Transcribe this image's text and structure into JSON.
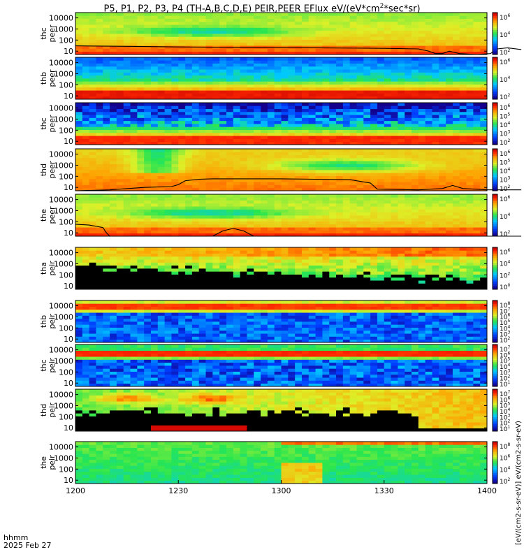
{
  "title": {
    "text": "P5, P1, P2, P3, P4 (TH-A,B,C,D,E) PEIR,PEER EFlux eV/(eV*cm",
    "sup": "2",
    "text2": "*sec*sr)"
  },
  "colorbar_label": "[eV/(cm2-s-sr-eV)] eV/(cm2-s-sr-eV)",
  "time_axis": {
    "ticks": [
      "1200",
      "1230",
      "1300",
      "1330",
      "1400"
    ],
    "units_label": "hhmm",
    "date_label": "2025 Feb 27"
  },
  "chart_data": {
    "type": "heatmap",
    "x_range": [
      "12:00",
      "14:00"
    ],
    "x_ticks": [
      "1200",
      "1230",
      "1300",
      "1330",
      "1400"
    ],
    "y_scale": "log",
    "y_range": [
      5,
      30000
    ],
    "y_ticks": [
      "10",
      "100",
      "1000",
      "10000"
    ],
    "panels": [
      {
        "label": [
          "thc",
          "peer"
        ],
        "cbar_ticks": [
          "6",
          "4",
          "2"
        ],
        "cbar_max": 7,
        "scheme": "peer",
        "line": [
          [
            0,
            30
          ],
          [
            10,
            28
          ],
          [
            20,
            26
          ],
          [
            30,
            24
          ],
          [
            40,
            23
          ],
          [
            50,
            22
          ],
          [
            60,
            21
          ],
          [
            70,
            20
          ],
          [
            80,
            19
          ],
          [
            90,
            18
          ],
          [
            100,
            16
          ],
          [
            103,
            10
          ],
          [
            105,
            6
          ],
          [
            107,
            6
          ],
          [
            109,
            10
          ],
          [
            112,
            6
          ],
          [
            117,
            5
          ],
          [
            121,
            6
          ],
          [
            123,
            16
          ],
          [
            126,
            20
          ],
          [
            130,
            14
          ]
        ]
      },
      {
        "label": [
          "thb",
          "peer"
        ],
        "cbar_ticks": [
          "6",
          "4",
          "2"
        ],
        "cbar_max": 7,
        "scheme": "peer_band",
        "line": []
      },
      {
        "label": [
          "thc",
          "peer"
        ],
        "cbar_ticks": [
          "6",
          "5",
          "4",
          "3",
          "2"
        ],
        "cbar_max": 6,
        "scheme": "peer_noise",
        "line": []
      },
      {
        "label": [
          "thd",
          "peer"
        ],
        "cbar_ticks": [
          "6",
          "5",
          "4",
          "3",
          "2"
        ],
        "cbar_max": 6,
        "scheme": "peer_hot",
        "line": [
          [
            0,
            5
          ],
          [
            10,
            6
          ],
          [
            20,
            10
          ],
          [
            28,
            12
          ],
          [
            30,
            18
          ],
          [
            32,
            40
          ],
          [
            36,
            55
          ],
          [
            40,
            60
          ],
          [
            60,
            60
          ],
          [
            70,
            55
          ],
          [
            80,
            50
          ],
          [
            86,
            25
          ],
          [
            88,
            7
          ],
          [
            100,
            6
          ],
          [
            107,
            8
          ],
          [
            110,
            15
          ],
          [
            113,
            8
          ],
          [
            120,
            6
          ],
          [
            130,
            6
          ]
        ]
      },
      {
        "label": [
          "the",
          "peer"
        ],
        "cbar_ticks": [
          "6",
          "4",
          "2"
        ],
        "cbar_max": 7,
        "scheme": "peer",
        "line": [
          [
            0,
            60
          ],
          [
            4,
            50
          ],
          [
            8,
            30
          ],
          [
            9,
            10
          ],
          [
            10,
            5
          ],
          [
            20,
            5
          ],
          [
            30,
            5
          ],
          [
            40,
            5
          ],
          [
            43,
            15
          ],
          [
            46,
            25
          ],
          [
            49,
            15
          ],
          [
            52,
            5
          ],
          [
            70,
            5
          ],
          [
            100,
            5
          ],
          [
            130,
            5
          ]
        ]
      },
      {
        "label": [
          "tha",
          "peir"
        ],
        "cbar_ticks": [
          "6",
          "4",
          "2",
          "0"
        ],
        "cbar_max": 7,
        "scheme": "peir_black",
        "line": []
      },
      {
        "label": [
          "thb",
          "peir"
        ],
        "cbar_ticks": [
          "8",
          "7",
          "6",
          "5",
          "4",
          "3",
          "2"
        ],
        "cbar_max": 8,
        "scheme": "peir_band",
        "line": []
      },
      {
        "label": [
          "thc",
          "peir"
        ],
        "cbar_ticks": [
          "7",
          "6",
          "5",
          "4",
          "3",
          "2",
          "1"
        ],
        "cbar_max": 7,
        "scheme": "peir_band2",
        "line": []
      },
      {
        "label": [
          "thd",
          "peir"
        ],
        "cbar_ticks": [
          "7",
          "6",
          "5",
          "4",
          "3",
          "2",
          "1"
        ],
        "cbar_max": 7,
        "scheme": "peir_black2",
        "line": []
      },
      {
        "label": [
          "the",
          "peir"
        ],
        "cbar_ticks": [
          "8",
          "6",
          "4",
          "2"
        ],
        "cbar_max": 8,
        "scheme": "peir_green",
        "line": []
      }
    ]
  }
}
